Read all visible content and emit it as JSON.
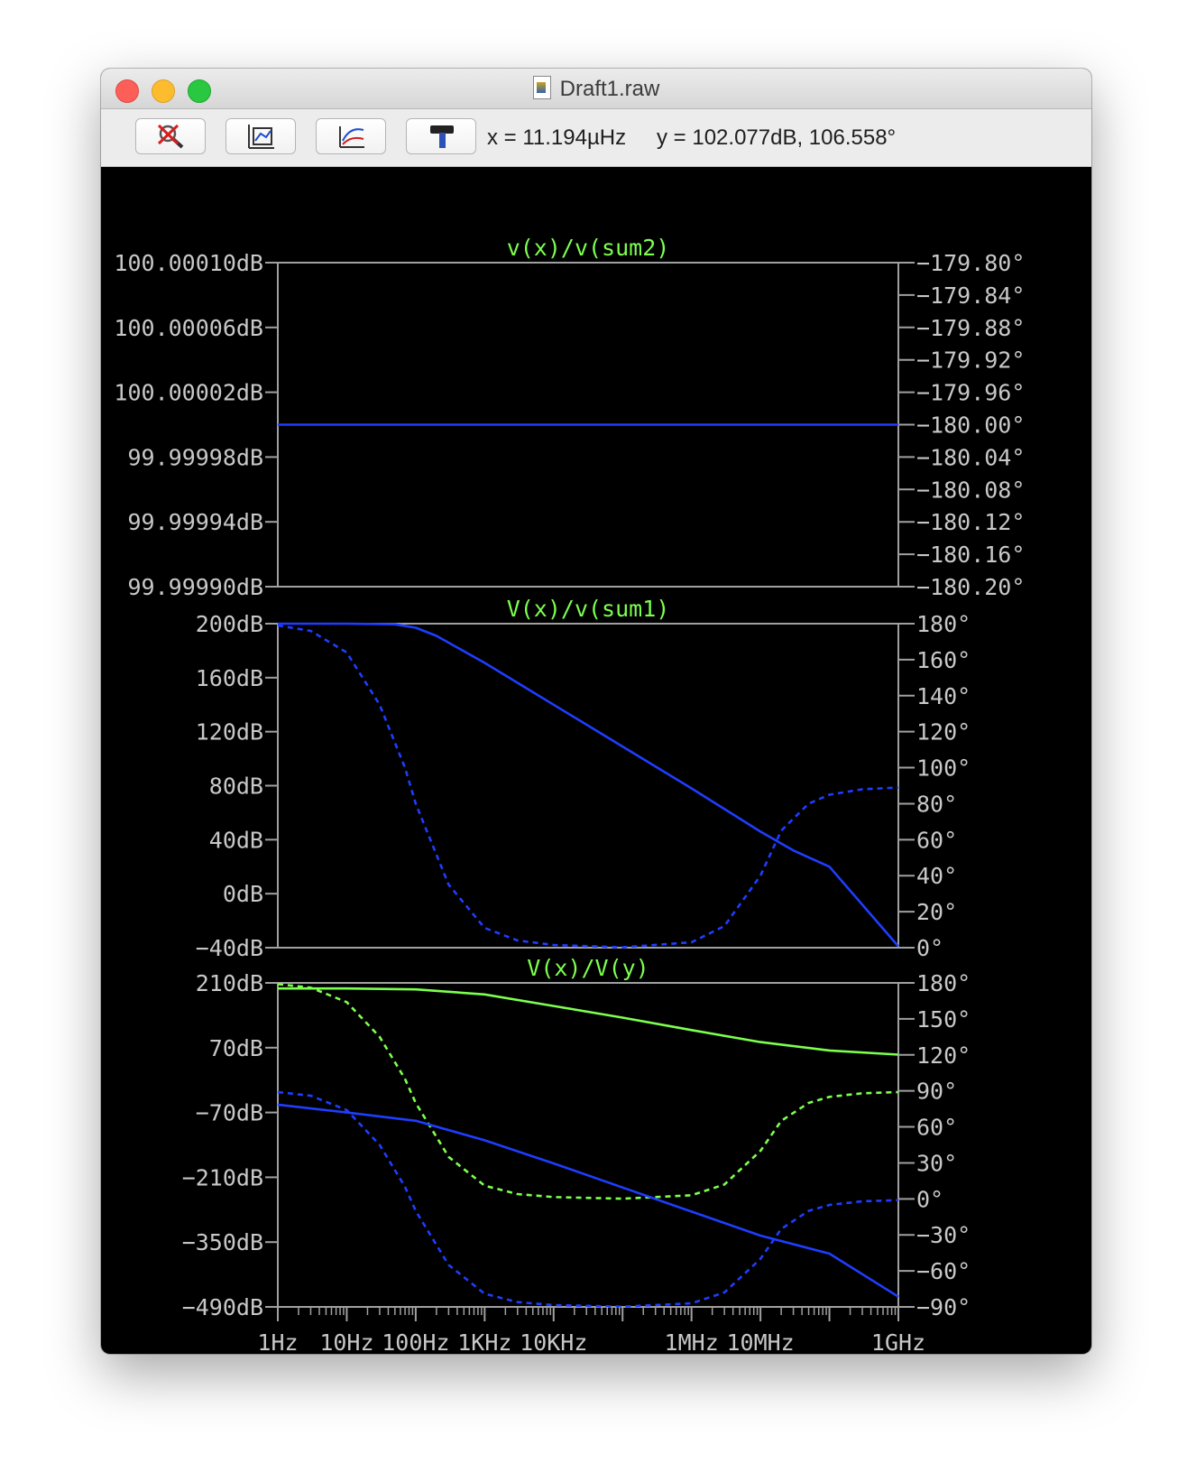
{
  "window": {
    "title": "Draft1.raw"
  },
  "toolbar": {
    "buttons": [
      {
        "icon": "zoom-cancel-icon"
      },
      {
        "icon": "autorange-icon"
      },
      {
        "icon": "mark-data-points-icon"
      },
      {
        "icon": "hammer-icon"
      }
    ],
    "cursor_x": "x = 11.194µHz",
    "cursor_y": "y = 102.077dB, 106.558°"
  },
  "colors": {
    "background": "#000000",
    "frame": "#a0a0a0",
    "title": "#7cff4f",
    "blue": "#1f3dff",
    "green": "#7cff4f"
  },
  "chart_data": [
    {
      "type": "line",
      "title": "v(x)/v(sum2)",
      "x_scale": "log",
      "xlim": [
        "1Hz",
        "1GHz"
      ],
      "ylim_left": [
        99.9999,
        100.0001
      ],
      "ylim_right": [
        -180.2,
        -179.8
      ],
      "left_ticks": [
        "100.00010dB",
        "100.00006dB",
        "100.00002dB",
        "99.99998dB",
        "99.99994dB",
        "99.99990dB"
      ],
      "right_ticks": [
        "-179.80°",
        "-179.84°",
        "-179.88°",
        "-179.92°",
        "-179.96°",
        "-180.00°",
        "-180.04°",
        "-180.08°",
        "-180.12°",
        "-180.16°",
        "-180.20°"
      ],
      "series": [
        {
          "color": "#1f3dff",
          "style": "solid",
          "axis": "left",
          "unit": "dB",
          "points": [
            [
              1,
              100.0
            ],
            [
              1000000000,
              100.0
            ]
          ]
        }
      ]
    },
    {
      "type": "line",
      "title": "V(x)/v(sum1)",
      "x_scale": "log",
      "xlim": [
        "1Hz",
        "1GHz"
      ],
      "ylim_left": [
        -40,
        200
      ],
      "ylim_right": [
        0,
        180
      ],
      "left_ticks": [
        "200dB",
        "160dB",
        "120dB",
        "80dB",
        "40dB",
        "0dB",
        "-40dB"
      ],
      "right_ticks": [
        "180°",
        "160°",
        "140°",
        "120°",
        "100°",
        "80°",
        "60°",
        "40°",
        "20°",
        "0°"
      ],
      "series": [
        {
          "color": "#1f3dff",
          "style": "solid",
          "axis": "left",
          "unit": "dB",
          "points": [
            [
              1,
              200
            ],
            [
              10,
              200
            ],
            [
              50,
              199.5
            ],
            [
              100,
              197
            ],
            [
              200,
              191
            ],
            [
              1000,
              171
            ],
            [
              10000,
              140
            ],
            [
              100000,
              109
            ],
            [
              1000000,
              78
            ],
            [
              10000000,
              46
            ],
            [
              30000000,
              32
            ],
            [
              100000000,
              20
            ],
            [
              1000000000,
              -39
            ]
          ]
        },
        {
          "color": "#1f3dff",
          "style": "dashed",
          "axis": "right",
          "unit": "°",
          "points": [
            [
              1,
              179
            ],
            [
              3,
              176
            ],
            [
              10,
              164
            ],
            [
              30,
              135
            ],
            [
              70,
              100
            ],
            [
              100,
              80
            ],
            [
              300,
              35
            ],
            [
              1000,
              11
            ],
            [
              3000,
              4
            ],
            [
              10000,
              1.5
            ],
            [
              100000,
              0.2
            ],
            [
              1000000,
              3
            ],
            [
              3000000,
              12
            ],
            [
              10000000,
              40
            ],
            [
              20000000,
              65
            ],
            [
              50000000,
              80
            ],
            [
              100000000,
              85
            ],
            [
              300000000,
              88
            ],
            [
              1000000000,
              89
            ]
          ]
        }
      ]
    },
    {
      "type": "line",
      "title": "V(x)/V(y)",
      "x_scale": "log",
      "xlim": [
        "1Hz",
        "1GHz"
      ],
      "ylim_left": [
        -490,
        210
      ],
      "ylim_right": [
        -90,
        180
      ],
      "left_ticks": [
        "210dB",
        "70dB",
        "-70dB",
        "-210dB",
        "-350dB",
        "-490dB"
      ],
      "right_ticks": [
        "180°",
        "150°",
        "120°",
        "90°",
        "60°",
        "30°",
        "0°",
        "-30°",
        "-60°",
        "-90°"
      ],
      "x_ticks": [
        "1Hz",
        "10Hz",
        "100Hz",
        "1KHz",
        "10KHz",
        "1MHz",
        "10MHz",
        "1GHz"
      ],
      "series": [
        {
          "color": "#7cff4f",
          "style": "solid",
          "axis": "left",
          "unit": "dB",
          "points": [
            [
              1,
              198
            ],
            [
              10,
              198
            ],
            [
              100,
              196
            ],
            [
              1000,
              185
            ],
            [
              10000,
              160
            ],
            [
              100000,
              135
            ],
            [
              1000000,
              108
            ],
            [
              10000000,
              82
            ],
            [
              100000000,
              64
            ],
            [
              1000000000,
              55
            ]
          ]
        },
        {
          "color": "#7cff4f",
          "style": "dashed",
          "axis": "right",
          "unit": "°",
          "points": [
            [
              1,
              179
            ],
            [
              3,
              176
            ],
            [
              10,
              164
            ],
            [
              30,
              135
            ],
            [
              70,
              100
            ],
            [
              100,
              80
            ],
            [
              300,
              35
            ],
            [
              1000,
              11
            ],
            [
              3000,
              4
            ],
            [
              10000,
              1.5
            ],
            [
              100000,
              0.2
            ],
            [
              1000000,
              3
            ],
            [
              3000000,
              12
            ],
            [
              10000000,
              40
            ],
            [
              20000000,
              65
            ],
            [
              50000000,
              80
            ],
            [
              100000000,
              85
            ],
            [
              300000000,
              88
            ],
            [
              1000000000,
              89
            ]
          ]
        },
        {
          "color": "#1f3dff",
          "style": "solid",
          "axis": "left",
          "unit": "dB",
          "points": [
            [
              1,
              -53
            ],
            [
              10,
              -70
            ],
            [
              100,
              -88
            ],
            [
              1000,
              -130
            ],
            [
              10000,
              -180
            ],
            [
              100000,
              -232
            ],
            [
              1000000,
              -284
            ],
            [
              10000000,
              -336
            ],
            [
              100000000,
              -375
            ],
            [
              1000000000,
              -468
            ]
          ]
        },
        {
          "color": "#1f3dff",
          "style": "dashed",
          "axis": "right",
          "unit": "°",
          "points": [
            [
              1,
              89
            ],
            [
              3,
              86
            ],
            [
              10,
              74
            ],
            [
              30,
              45
            ],
            [
              70,
              10
            ],
            [
              100,
              -10
            ],
            [
              300,
              -55
            ],
            [
              1000,
              -79
            ],
            [
              3000,
              -86
            ],
            [
              10000,
              -88.5
            ],
            [
              100000,
              -89.8
            ],
            [
              1000000,
              -87
            ],
            [
              3000000,
              -78
            ],
            [
              10000000,
              -50
            ],
            [
              20000000,
              -25
            ],
            [
              50000000,
              -10
            ],
            [
              100000000,
              -5
            ],
            [
              300000000,
              -2
            ],
            [
              1000000000,
              -1
            ]
          ]
        }
      ]
    }
  ]
}
